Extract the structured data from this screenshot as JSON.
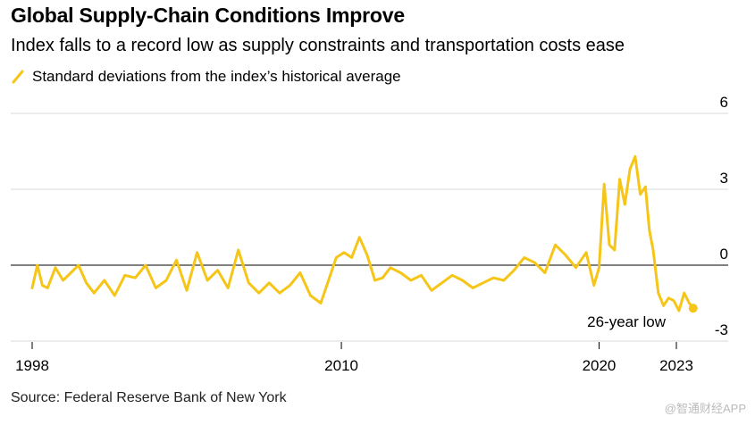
{
  "header": {
    "title": "Global Supply-Chain Conditions Improve",
    "subtitle": "Index falls to a record low as supply constraints and transportation costs ease"
  },
  "legend": {
    "label": "Standard deviations from the index’s historical average"
  },
  "footer": {
    "source": "Source: Federal Reserve Bank of New York",
    "watermark": "@智通财经APP"
  },
  "colors": {
    "series": "#f5c518",
    "zero_line": "#000000",
    "grid": "#d9d9d9"
  },
  "chart_data": {
    "type": "line",
    "ylim": [
      -3,
      6
    ],
    "yticks": [
      -3,
      0,
      3,
      6
    ],
    "ytick_labels": [
      "-3",
      "0",
      "3",
      "6"
    ],
    "xlim": [
      1997.9,
      2023.9
    ],
    "xticks": [
      1998,
      2010,
      2020,
      2023
    ],
    "xtick_labels": [
      "1998",
      "2010",
      "2020",
      "2023"
    ],
    "legend_position": "top-left",
    "annotation": {
      "text": "26-year low",
      "x": 2022.0,
      "y": -1.7
    },
    "series": [
      {
        "name": "Standard deviations from the index’s historical average",
        "x": [
          1998.0,
          1998.2,
          1998.4,
          1998.6,
          1998.9,
          1999.2,
          1999.5,
          1999.8,
          2000.1,
          2000.4,
          2000.8,
          2001.2,
          2001.6,
          2002.0,
          2002.4,
          2002.8,
          2003.2,
          2003.6,
          2004.0,
          2004.4,
          2004.8,
          2005.2,
          2005.6,
          2006.0,
          2006.4,
          2006.8,
          2007.2,
          2007.6,
          2008.0,
          2008.4,
          2008.8,
          2009.2,
          2009.5,
          2009.8,
          2010.1,
          2010.4,
          2010.7,
          2011.0,
          2011.3,
          2011.6,
          2011.9,
          2012.3,
          2012.7,
          2013.1,
          2013.5,
          2013.9,
          2014.3,
          2014.7,
          2015.1,
          2015.5,
          2015.9,
          2016.3,
          2016.7,
          2017.1,
          2017.5,
          2017.9,
          2018.3,
          2018.7,
          2019.1,
          2019.5,
          2019.8,
          2020.0,
          2020.2,
          2020.4,
          2020.6,
          2020.8,
          2021.0,
          2021.2,
          2021.4,
          2021.6,
          2021.8,
          2021.95,
          2022.1,
          2022.3,
          2022.5,
          2022.7,
          2022.9,
          2023.1,
          2023.3,
          2023.5,
          2023.65
        ],
        "values": [
          -0.9,
          0.0,
          -0.8,
          -0.9,
          -0.1,
          -0.6,
          -0.3,
          0.0,
          -0.7,
          -1.1,
          -0.6,
          -1.2,
          -0.4,
          -0.5,
          0.0,
          -0.9,
          -0.6,
          0.2,
          -1.0,
          0.5,
          -0.6,
          -0.2,
          -0.9,
          0.6,
          -0.7,
          -1.1,
          -0.7,
          -1.1,
          -0.8,
          -0.3,
          -1.2,
          -1.5,
          -0.6,
          0.3,
          0.5,
          0.3,
          1.1,
          0.4,
          -0.6,
          -0.5,
          -0.1,
          -0.3,
          -0.6,
          -0.4,
          -1.0,
          -0.7,
          -0.4,
          -0.6,
          -0.9,
          -0.7,
          -0.5,
          -0.6,
          -0.2,
          0.3,
          0.1,
          -0.3,
          0.8,
          0.4,
          -0.1,
          0.5,
          -0.8,
          -0.1,
          3.2,
          0.8,
          0.6,
          3.4,
          2.4,
          3.8,
          4.3,
          2.8,
          3.1,
          1.4,
          0.6,
          -1.1,
          -1.6,
          -1.3,
          -1.4,
          -1.8,
          -1.1,
          -1.5,
          -1.7
        ]
      }
    ]
  }
}
